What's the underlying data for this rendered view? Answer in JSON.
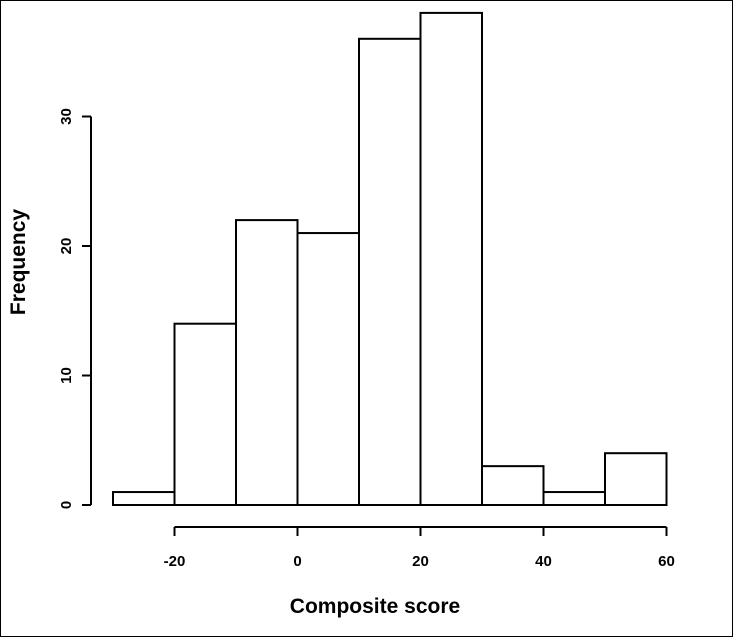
{
  "chart_data": {
    "type": "bar",
    "bins": [
      {
        "from": -30,
        "to": -20,
        "count": 1
      },
      {
        "from": -20,
        "to": -10,
        "count": 14
      },
      {
        "from": -10,
        "to": 0,
        "count": 22
      },
      {
        "from": 0,
        "to": 10,
        "count": 21
      },
      {
        "from": 10,
        "to": 20,
        "count": 36
      },
      {
        "from": 20,
        "to": 30,
        "count": 38
      },
      {
        "from": 30,
        "to": 40,
        "count": 3
      },
      {
        "from": 40,
        "to": 50,
        "count": 1
      },
      {
        "from": 50,
        "to": 60,
        "count": 4
      }
    ],
    "xlabel": "Composite score",
    "ylabel": "Frequency",
    "xticks": [
      -20,
      0,
      20,
      40,
      60
    ],
    "yticks": [
      0,
      10,
      20,
      30
    ],
    "xlim": [
      -30,
      60
    ],
    "ylim": [
      0,
      38
    ],
    "grid": false,
    "legend": "none"
  }
}
